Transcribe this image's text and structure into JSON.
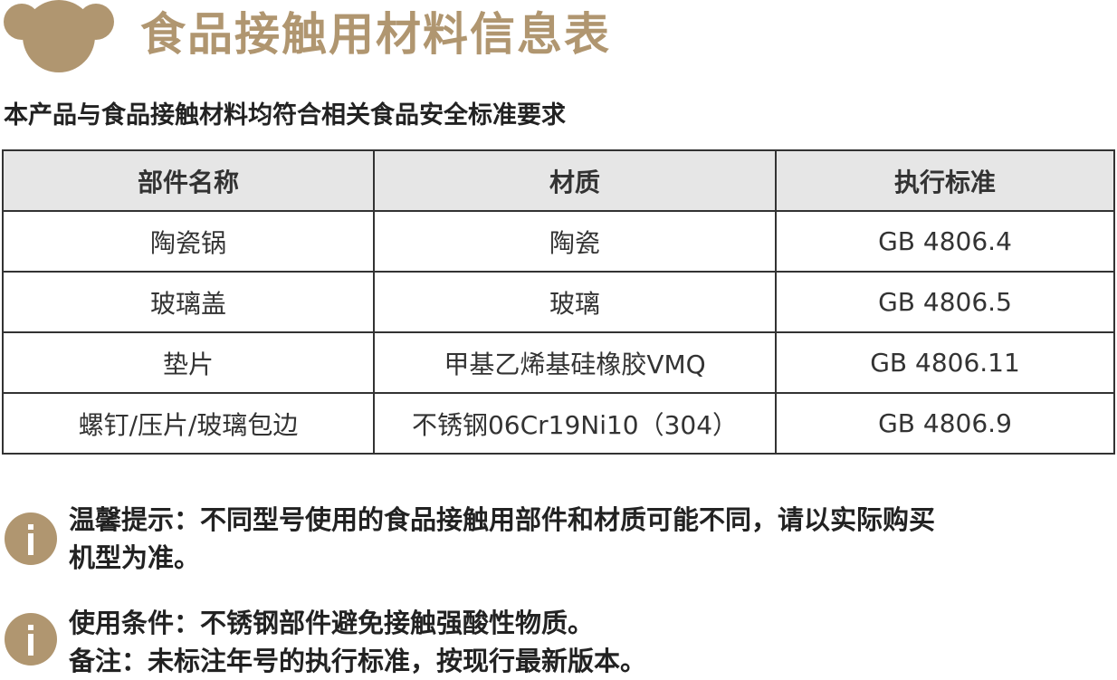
{
  "header": {
    "title": "食品接触用材料信息表",
    "logo_icon": "bear-head-logo",
    "brand_color": "#b09670"
  },
  "subtitle": "本产品与食品接触材料均符合相关食品安全标准要求",
  "table": {
    "headers": [
      "部件名称",
      "材质",
      "执行标准"
    ],
    "rows": [
      [
        "陶瓷锅",
        "陶瓷",
        "GB 4806.4"
      ],
      [
        "玻璃盖",
        "玻璃",
        "GB 4806.5"
      ],
      [
        "垫片",
        "甲基乙烯基硅橡胶VMQ",
        "GB 4806.11"
      ],
      [
        "螺钉/压片/玻璃包边",
        "不锈钢06Cr19Ni10（304）",
        "GB 4806.9"
      ]
    ]
  },
  "notes": [
    {
      "icon": "info-icon",
      "lines": [
        "温馨提示：不同型号使用的食品接触用部件和材质可能不同，请以实际购买",
        "机型为准。"
      ]
    },
    {
      "icon": "info-icon",
      "lines": [
        "使用条件：不锈钢部件避免接触强酸性物质。",
        "备注：未标注年号的执行标准，按现行最新版本。"
      ]
    }
  ]
}
